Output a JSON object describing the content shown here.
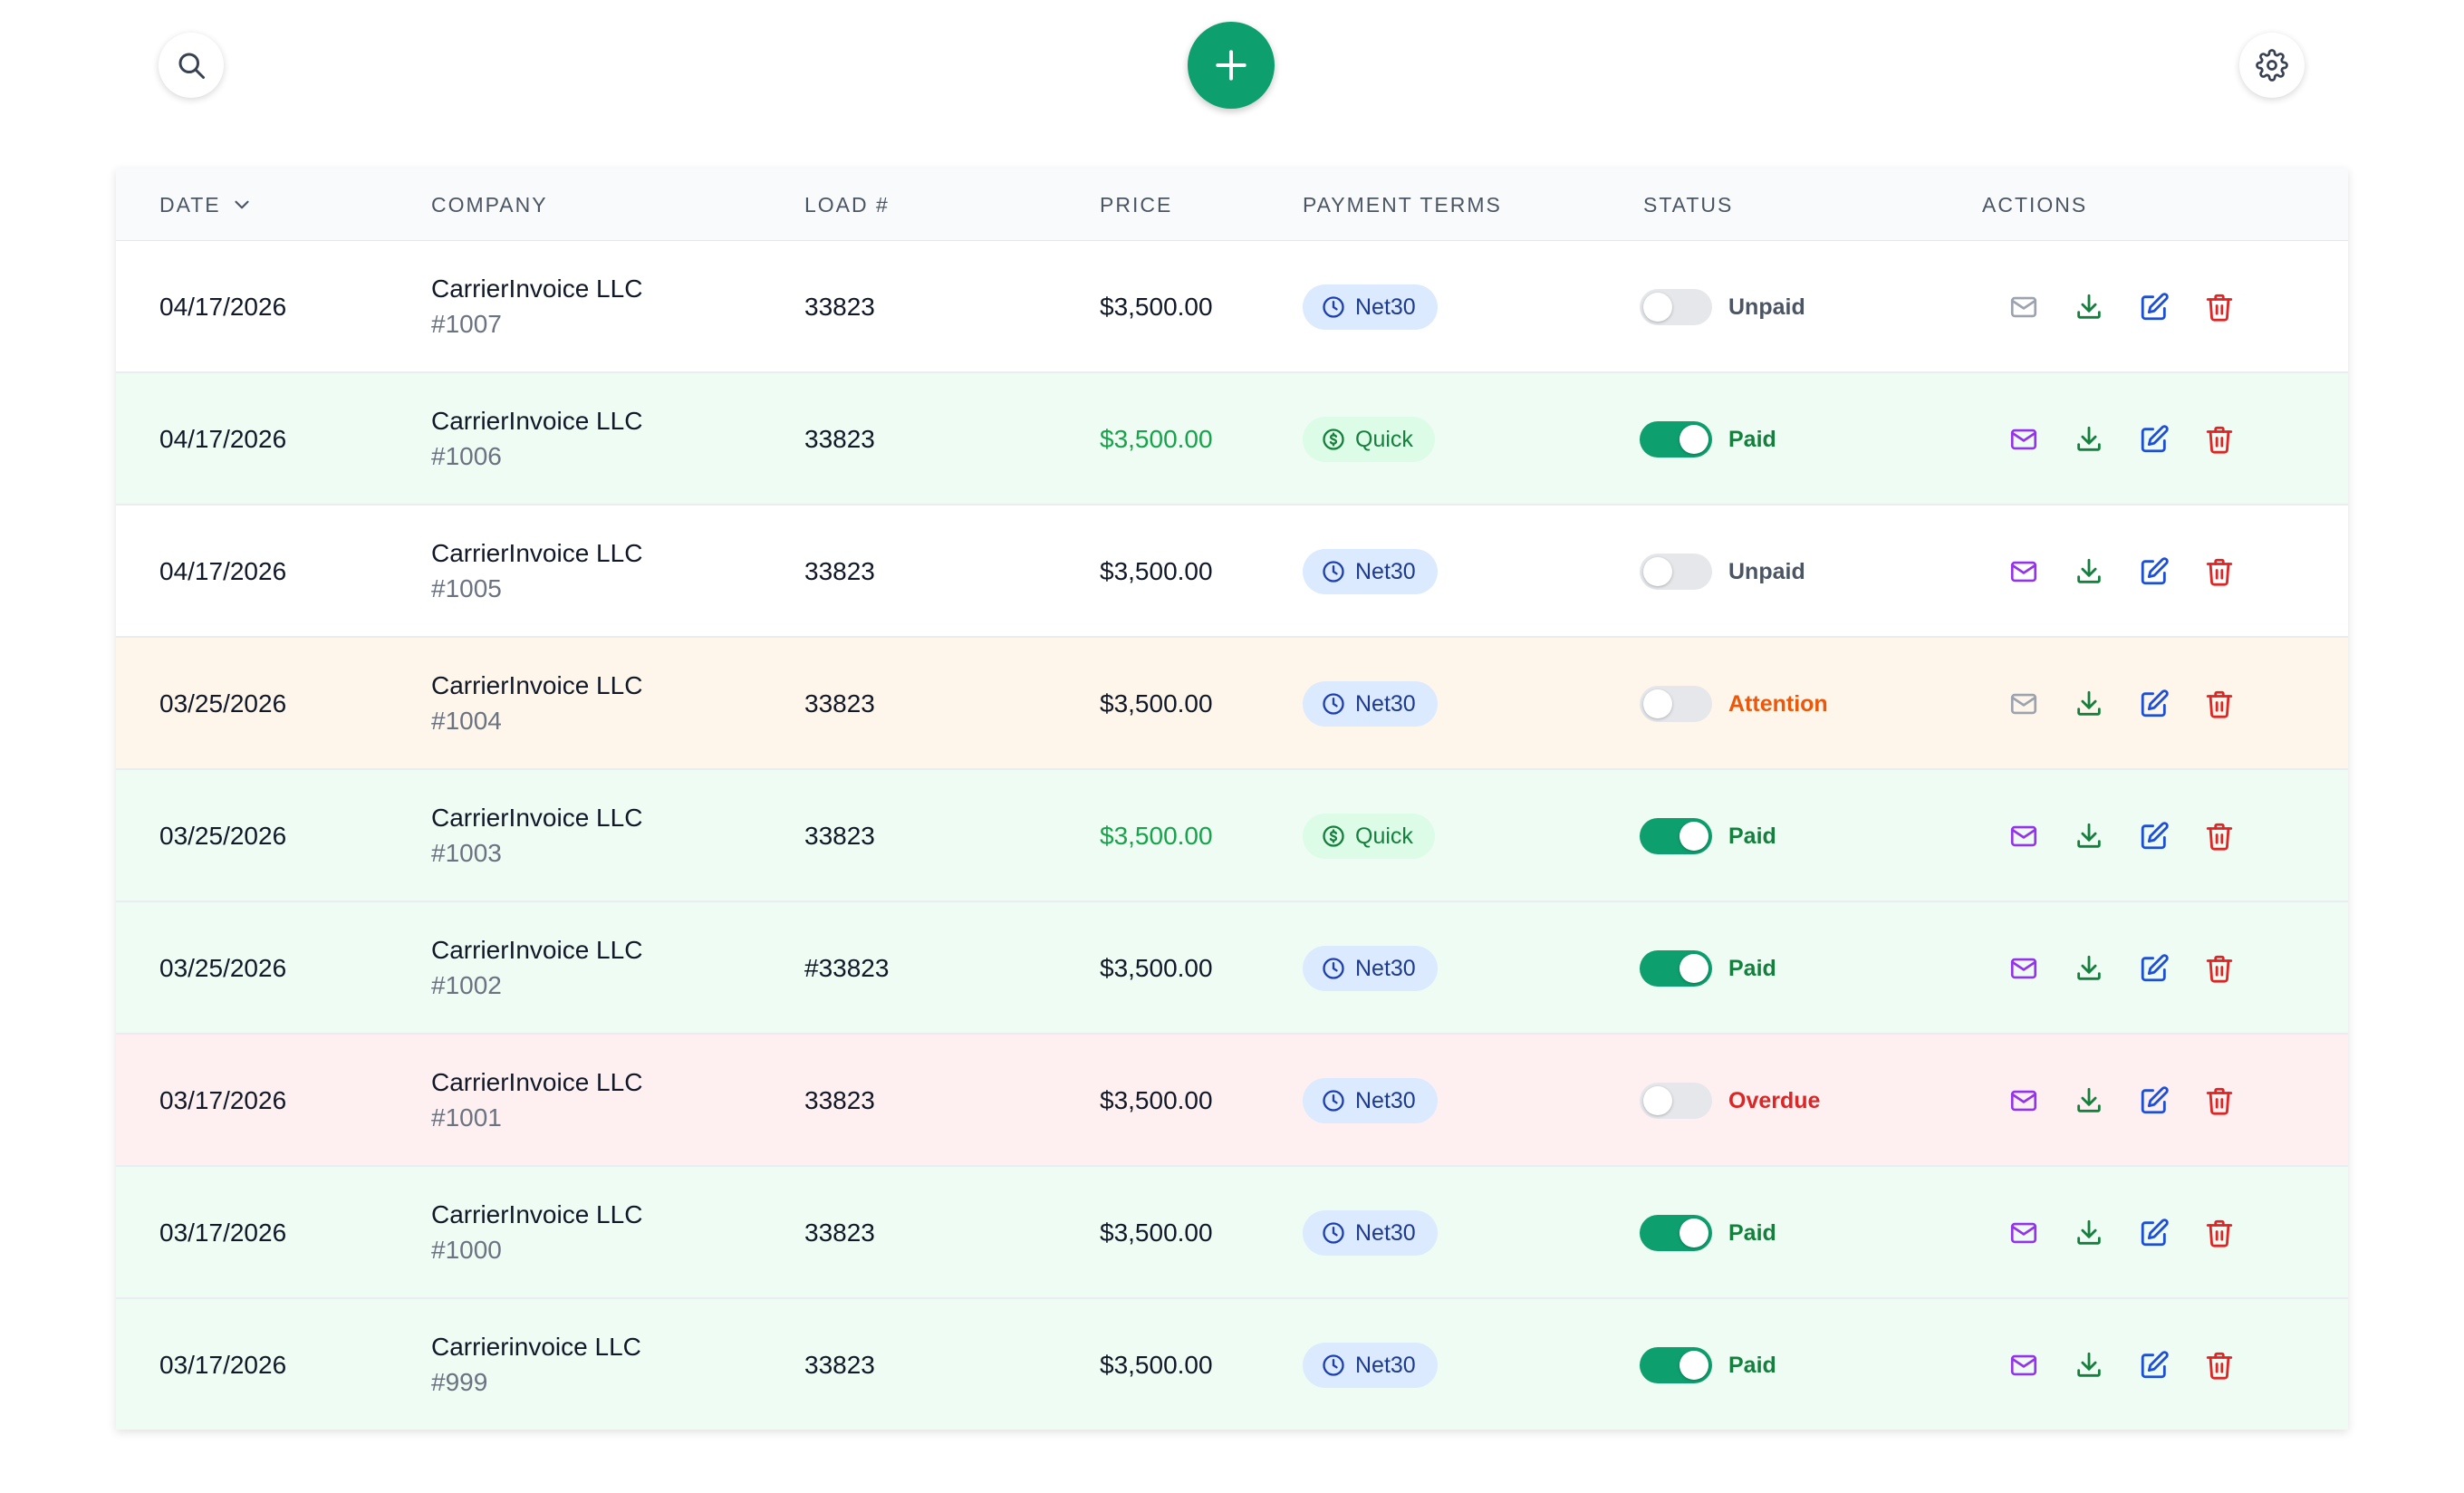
{
  "header": {
    "search_icon": "search-icon",
    "add_icon": "plus-icon",
    "settings_icon": "gear-icon"
  },
  "columns": {
    "date": "DATE",
    "company": "COMPANY",
    "load": "LOAD #",
    "price": "PRICE",
    "payment_terms": "PAYMENT TERMS",
    "status": "STATUS",
    "actions": "ACTIONS"
  },
  "colors": {
    "accent": "#0e9f6e",
    "paid": "#15803d",
    "attention": "#ea580c",
    "overdue": "#dc2626",
    "email": "#9333ea",
    "email_disabled": "#9ca3af",
    "download": "#15803d",
    "edit": "#1d4ed8",
    "delete": "#dc2626"
  },
  "rows": [
    {
      "date": "04/17/2026",
      "company": "CarrierInvoice LLC",
      "invoice": "#1007",
      "load": "33823",
      "price": "$3,500.00",
      "terms": "Net30",
      "terms_type": "net",
      "status": "Unpaid",
      "status_type": "unpaid",
      "toggle_on": false,
      "tone": "white",
      "email_enabled": false
    },
    {
      "date": "04/17/2026",
      "company": "CarrierInvoice LLC",
      "invoice": "#1006",
      "load": "33823",
      "price": "$3,500.00",
      "terms": "Quick",
      "terms_type": "quick",
      "status": "Paid",
      "status_type": "paid",
      "toggle_on": true,
      "tone": "green",
      "email_enabled": true
    },
    {
      "date": "04/17/2026",
      "company": "CarrierInvoice LLC",
      "invoice": "#1005",
      "load": "33823",
      "price": "$3,500.00",
      "terms": "Net30",
      "terms_type": "net",
      "status": "Unpaid",
      "status_type": "unpaid",
      "toggle_on": false,
      "tone": "white",
      "email_enabled": true
    },
    {
      "date": "03/25/2026",
      "company": "CarrierInvoice LLC",
      "invoice": "#1004",
      "load": "33823",
      "price": "$3,500.00",
      "terms": "Net30",
      "terms_type": "net",
      "status": "Attention",
      "status_type": "attention",
      "toggle_on": false,
      "tone": "amber",
      "email_enabled": false
    },
    {
      "date": "03/25/2026",
      "company": "CarrierInvoice LLC",
      "invoice": "#1003",
      "load": "33823",
      "price": "$3,500.00",
      "terms": "Quick",
      "terms_type": "quick",
      "status": "Paid",
      "status_type": "paid",
      "toggle_on": true,
      "tone": "green",
      "email_enabled": true
    },
    {
      "date": "03/25/2026",
      "company": "CarrierInvoice LLC",
      "invoice": "#1002",
      "load": "#33823",
      "price": "$3,500.00",
      "terms": "Net30",
      "terms_type": "net",
      "status": "Paid",
      "status_type": "paid",
      "toggle_on": true,
      "tone": "green",
      "email_enabled": true
    },
    {
      "date": "03/17/2026",
      "company": "CarrierInvoice LLC",
      "invoice": "#1001",
      "load": "33823",
      "price": "$3,500.00",
      "terms": "Net30",
      "terms_type": "net",
      "status": "Overdue",
      "status_type": "overdue",
      "toggle_on": false,
      "tone": "red",
      "email_enabled": true
    },
    {
      "date": "03/17/2026",
      "company": "CarrierInvoice LLC",
      "invoice": "#1000",
      "load": "33823",
      "price": "$3,500.00",
      "terms": "Net30",
      "terms_type": "net",
      "status": "Paid",
      "status_type": "paid",
      "toggle_on": true,
      "tone": "green",
      "email_enabled": true
    },
    {
      "date": "03/17/2026",
      "company": "Carrierinvoice LLC",
      "invoice": "#999",
      "load": "33823",
      "price": "$3,500.00",
      "terms": "Net30",
      "terms_type": "net",
      "status": "Paid",
      "status_type": "paid",
      "toggle_on": true,
      "tone": "green",
      "email_enabled": true
    }
  ]
}
